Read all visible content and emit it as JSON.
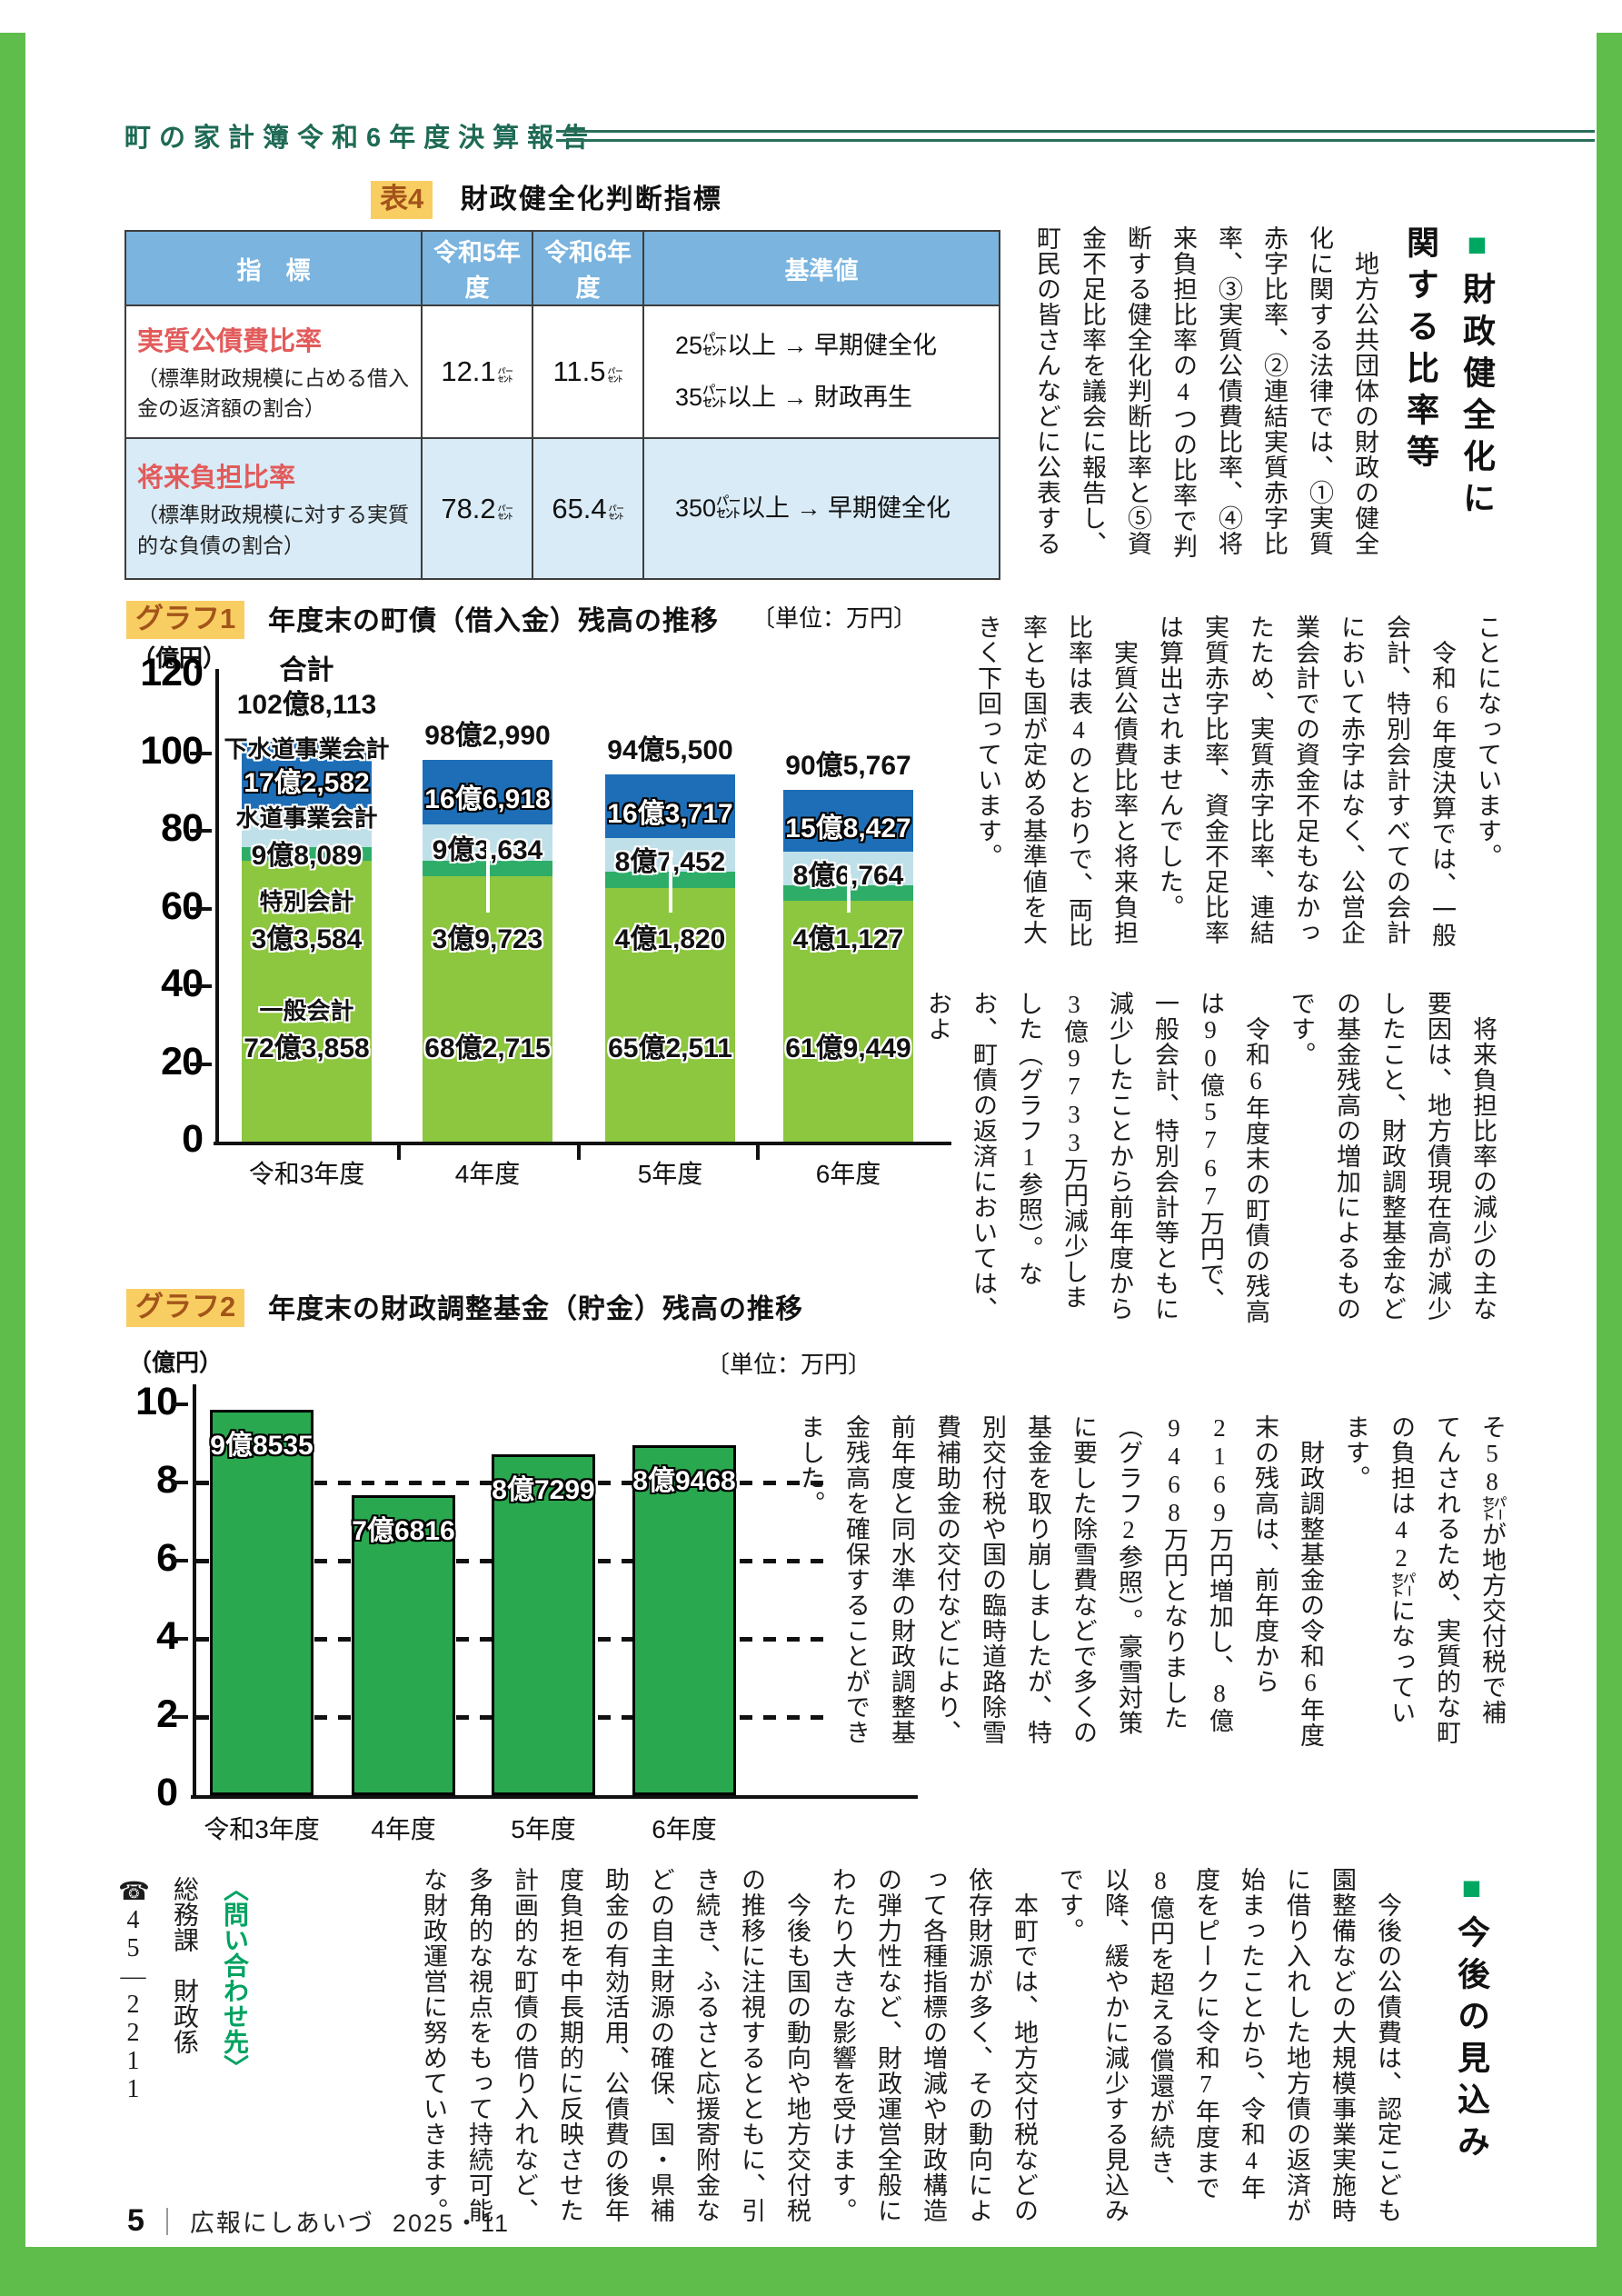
{
  "page": {
    "header_title": "町の家計簿令和6年度決算報告",
    "footer": {
      "page_no": "5",
      "publication": "広報にしあいづ",
      "issue": "2025・11"
    },
    "colors": {
      "frame_green": "#5fbd4c",
      "header_green": "#1e6a55",
      "accent_green_square": "#00a761",
      "badge_text": "#a3541a",
      "badge_highlight": "#f8ce63",
      "table_header_blue": "#7ab4df",
      "table_row2_blue": "#d9ebf6",
      "indicator_red": "#e25b5b"
    }
  },
  "table4": {
    "tag": "表4",
    "title": "財政健全化判断指標",
    "headers": [
      "指　標",
      "令和5年度",
      "令和6年度",
      "基準値"
    ],
    "unit": "㌫",
    "rows": [
      {
        "name": "実質公債費比率",
        "desc": "（標準財政規模に占める借入金の返済額の割合）",
        "r5": "12.1",
        "r6": "11.5",
        "standard": "25㌫以上 → 早期健全化\n35㌫以上 → 財政再生"
      },
      {
        "name": "将来負担比率",
        "desc": "（標準財政規模に対する実質的な負債の割合）",
        "r5": "78.2",
        "r6": "65.4",
        "standard": "350㌫以上 → 早期健全化"
      }
    ]
  },
  "article": {
    "headline1_marker": "■",
    "headline1_line1": "財政健全化に",
    "headline1_line2": "関する比率等",
    "block_a": "　地方公共団体の財政の健全化に関する法律では、①実質赤字比率、②連結実質赤字比率、③実質公債費比率、④将来負担比率の4つの比率で判断する健全化判断比率と⑤資金不足比率を議会に報告し、町民の皆さんなどに公表する",
    "block_b": "ことになっています。\n　令和6年度決算では、一般会計、特別会計すべての会計において赤字はなく、公営企業会計での資金不足もなかったため、実質赤字比率、連結実質赤字比率、資金不足比率は算出されませんでした。\n　実質公債費比率と将来負担比率は表4のとおりで、両比率とも国が定める基準値を大きく下回っています。",
    "block_c": "　将来負担比率の減少の主な要因は、地方債現在高が減少したこと、財政調整基金などの基金残高の増加によるものです。\n　令和6年度末の町債の残高は90億5767万円で、一般会計、特別会計等ともに減少したことから前年度から3億9733万円減少しました（グラフ1参照）。なお、町債の返済においては、およ",
    "block_d": "そ58㌫が地方交付税で補てんされるため、実質的な町の負担は42㌫になっています。\n　財政調整基金の令和6年度末の残高は、前年度から2169万円増加し、8億9468万円となりました（グラフ2参照）。豪雪対策に要した除雪費などで多くの基金を取り崩しましたが、特別交付税や国の臨時道路除雪費補助金の交付などにより、前年度と同水準の財政調整基金残高を確保することができました。",
    "headline2_marker": "■",
    "headline2_text": "今後の見込み",
    "block_bottom": "　今後の公債費は、認定こども園整備などの大規模事業実施時に借り入れした地方債の返済が始まったことから、令和4年度をピークに令和7年度まで8億円を超える償還が続き、以降、緩やかに減少する見込みです。\n　本町では、地方交付税などの依存財源が多く、その動向によって各種指標の増減や財政構造の弾力性など、財政運営全般にわたり大きな影響を受けます。\n　今後も国の動向や地方交付税の推移に注視するとともに、引き続き、ふるさと応援寄附金などの自主財源の確保、国・県補助金の有効活用、公債費の後年度負担を中長期的に反映させた計画的な町債の借り入れなど、多角的な視点をもって持続可能な財政運営に努めていきます。"
  },
  "contact": {
    "label": "〈問い合わせ先〉",
    "department": "総務課　財政係",
    "phone_icon": "☎",
    "phone_number": "45―2211"
  },
  "chart_data": [
    {
      "type": "bar",
      "stacked": true,
      "tag": "グラフ1",
      "title": "年度末の町債（借入金）残高の推移",
      "unit": "〔単位：万円〕",
      "ylabel": "（億円）",
      "ylim": [
        0,
        120
      ],
      "yticks": [
        0,
        20,
        40,
        60,
        80,
        100,
        120
      ],
      "grid": false,
      "categories": [
        "令和3年度",
        "4年度",
        "5年度",
        "6年度"
      ],
      "total_prefix": "合計",
      "totals": [
        "102億8,113",
        "98億2,990",
        "94億5,500",
        "90億5,767"
      ],
      "totals_num": [
        102.8113,
        98.299,
        94.55,
        90.5767
      ],
      "series": [
        {
          "name": "一般会計",
          "color": "#8dc63f",
          "values": [
            72.3858,
            68.2715,
            65.2511,
            61.9449
          ],
          "labels": [
            "72億3,858",
            "68億2,715",
            "65億2,511",
            "61億9,449"
          ]
        },
        {
          "name": "特別会計",
          "color": "#2ead68",
          "values": [
            3.3584,
            3.9723,
            4.182,
            4.1127
          ],
          "labels": [
            "3億3,584",
            "3億9,723",
            "4億1,820",
            "4億1,127"
          ]
        },
        {
          "name": "水道事業会計",
          "color": "#bfe0e8",
          "values": [
            9.8089,
            9.3634,
            8.7452,
            8.6764
          ],
          "labels": [
            "9億8,089",
            "9億3,634",
            "8億7,452",
            "8億6,764"
          ]
        },
        {
          "name": "下水道事業会計",
          "color": "#1d6eb7",
          "values": [
            17.2582,
            16.6918,
            16.3717,
            15.8427
          ],
          "labels": [
            "17億2,582",
            "16億6,918",
            "16億3,717",
            "15億8,427"
          ]
        }
      ]
    },
    {
      "type": "bar",
      "tag": "グラフ2",
      "title": "年度末の財政調整基金（貯金）残高の推移",
      "unit": "〔単位：万円〕",
      "ylabel": "（億円）",
      "ylim": [
        0,
        10
      ],
      "yticks": [
        0,
        2,
        4,
        6,
        8,
        10
      ],
      "grid": "dashed horizontal at 2,4,6,8",
      "color": "#2aa84f",
      "categories": [
        "令和3年度",
        "4年度",
        "5年度",
        "6年度"
      ],
      "values": [
        9.8535,
        7.6816,
        8.7299,
        8.9468
      ],
      "labels": [
        "9億8535",
        "7億6816",
        "8億7299",
        "8億9468"
      ]
    }
  ]
}
